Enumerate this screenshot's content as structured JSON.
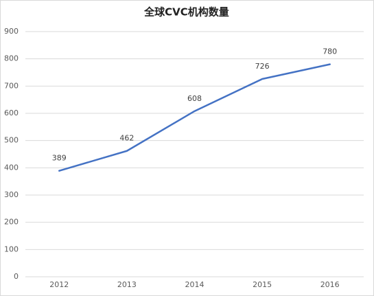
{
  "chart_data": {
    "type": "line",
    "title": "全球CVC机构数量",
    "categories": [
      "2012",
      "2013",
      "2014",
      "2015",
      "2016"
    ],
    "values": [
      389,
      462,
      608,
      726,
      780
    ],
    "color": "#4472c4",
    "ylim": [
      0,
      900
    ],
    "yticks": [
      0,
      100,
      200,
      300,
      400,
      500,
      600,
      700,
      800,
      900
    ],
    "grid": true,
    "data_labels": true
  }
}
